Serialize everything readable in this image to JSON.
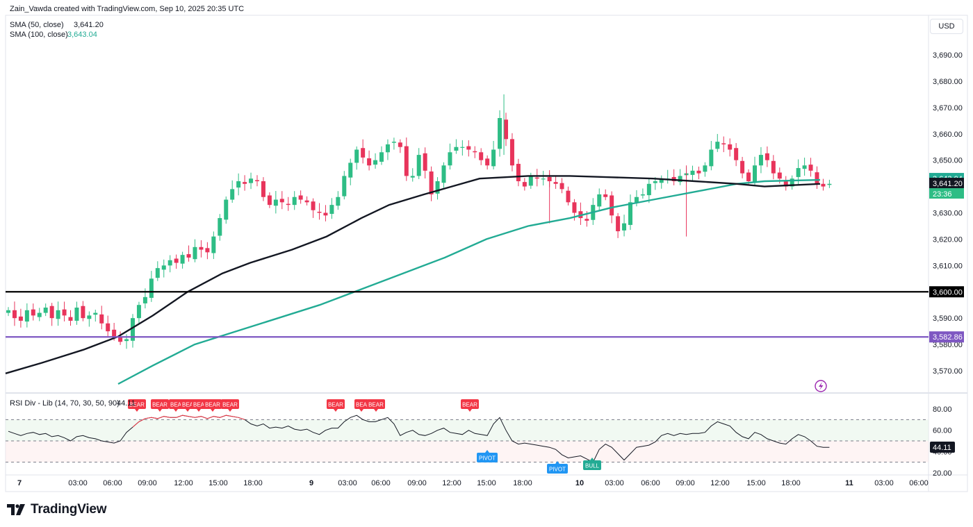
{
  "header": {
    "attribution": "Zain_Vawda created with TradingView.com, Sep 10, 2025 20:35 UTC"
  },
  "currency": "USD",
  "legend": {
    "sma50": {
      "label": "SMA (50, close)",
      "value": "3,641.20",
      "color": "#131722"
    },
    "sma100": {
      "label": "SMA (100, close)",
      "value": "3,643.04",
      "color": "#22ab94"
    }
  },
  "price_axis": {
    "ticks": [
      "3,690.00",
      "3,680.00",
      "3,670.00",
      "3,660.00",
      "3,650.00",
      "3,640.00",
      "3,630.00",
      "3,620.00",
      "3,610.00",
      "3,600.00",
      "3,590.00",
      "3,580.00",
      "3,570.00"
    ],
    "labels": {
      "sma100": "3,643.04",
      "sma50": "3,641.20",
      "countdown": "23:36",
      "level_black": "3,600.00",
      "level_purple": "3,582.86"
    }
  },
  "time_axis": {
    "labels": [
      "7",
      "03:00",
      "06:00",
      "09:00",
      "12:00",
      "15:00",
      "18:00",
      "9",
      "03:00",
      "06:00",
      "09:00",
      "12:00",
      "15:00",
      "18:00",
      "10",
      "03:00",
      "06:00",
      "09:00",
      "12:00",
      "15:00",
      "18:00",
      "11",
      "03:00",
      "06:00"
    ]
  },
  "rsi_panel": {
    "title": "RSI Div - Lib (14, 70, 30, 50, 90)",
    "value": "44.11",
    "ticks": [
      "80.00",
      "60.00",
      "40.00",
      "20.00"
    ],
    "bear_label": "BEAR",
    "bear_short_label": "BEA",
    "bull_label": "BULL",
    "pivot_label": "PIVOT"
  },
  "colors": {
    "up": "#26a69a",
    "up_bright": "#2ebd85",
    "down": "#e8345b",
    "sma50": "#131722",
    "sma100": "#22ab94",
    "level_black": "#000000",
    "level_purple": "#7e57c2",
    "bear_badge": "#f23645",
    "bull_badge": "#22ab94",
    "pivot_badge": "#2196f3"
  },
  "brand": {
    "logo_text": "TradingView"
  },
  "chart_data": {
    "type": "candlestick",
    "symbol_currency": "USD",
    "ylim": [
      3565,
      3697
    ],
    "sma50": {
      "name": "SMA (50, close)",
      "last": 3641.2
    },
    "sma100": {
      "name": "SMA (100, close)",
      "last": 3643.04
    },
    "horizontal_levels": [
      3600.0,
      3582.86
    ],
    "rsi": {
      "ylim": [
        15,
        90
      ],
      "levels": [
        70,
        50,
        30
      ],
      "last": 44.11
    }
  }
}
